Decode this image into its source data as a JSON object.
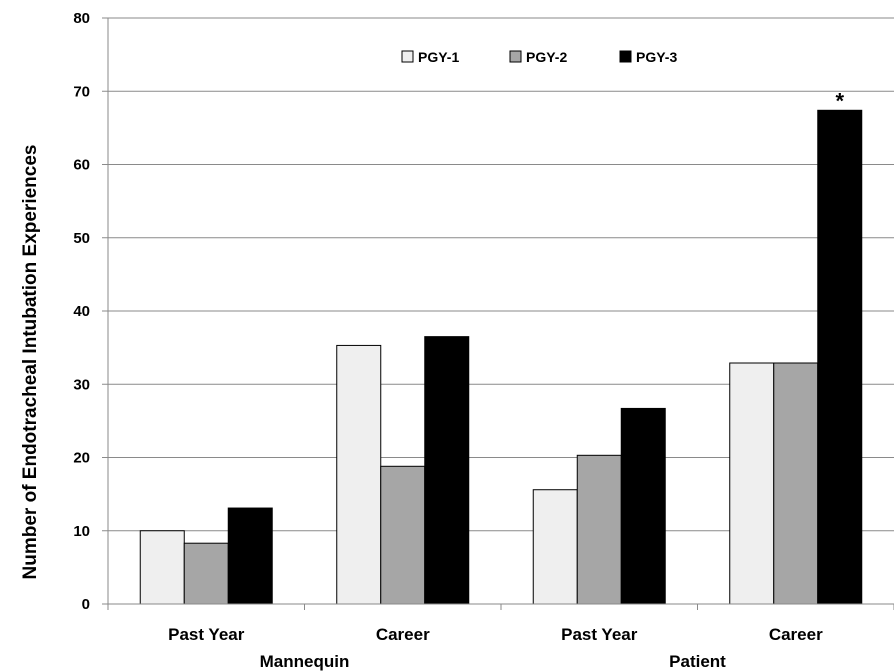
{
  "chart_data": {
    "type": "bar",
    "categories": [
      "Past Year",
      "Career",
      "Past Year",
      "Career"
    ],
    "groups": [
      "Mannequin",
      "Patient"
    ],
    "series": [
      {
        "name": "PGY-1",
        "values": [
          10,
          35.3,
          15.6,
          32.9
        ],
        "color": "#efefef"
      },
      {
        "name": "PGY-2",
        "values": [
          8.3,
          18.8,
          20.3,
          32.9
        ],
        "color": "#a6a6a6"
      },
      {
        "name": "PGY-3",
        "values": [
          13.1,
          36.5,
          26.7,
          67.4
        ],
        "color": "#000000"
      }
    ],
    "ylabel": "Number of Endotracheal Intubation Experiences",
    "ylim": [
      0,
      80
    ],
    "yticks": [
      "0",
      "10",
      "20",
      "30",
      "40",
      "50",
      "60",
      "70",
      "80"
    ],
    "grid": true,
    "legend_position": "top-center",
    "annotations": [
      {
        "text": "*",
        "category_index": 3,
        "series_index": 2
      }
    ]
  }
}
